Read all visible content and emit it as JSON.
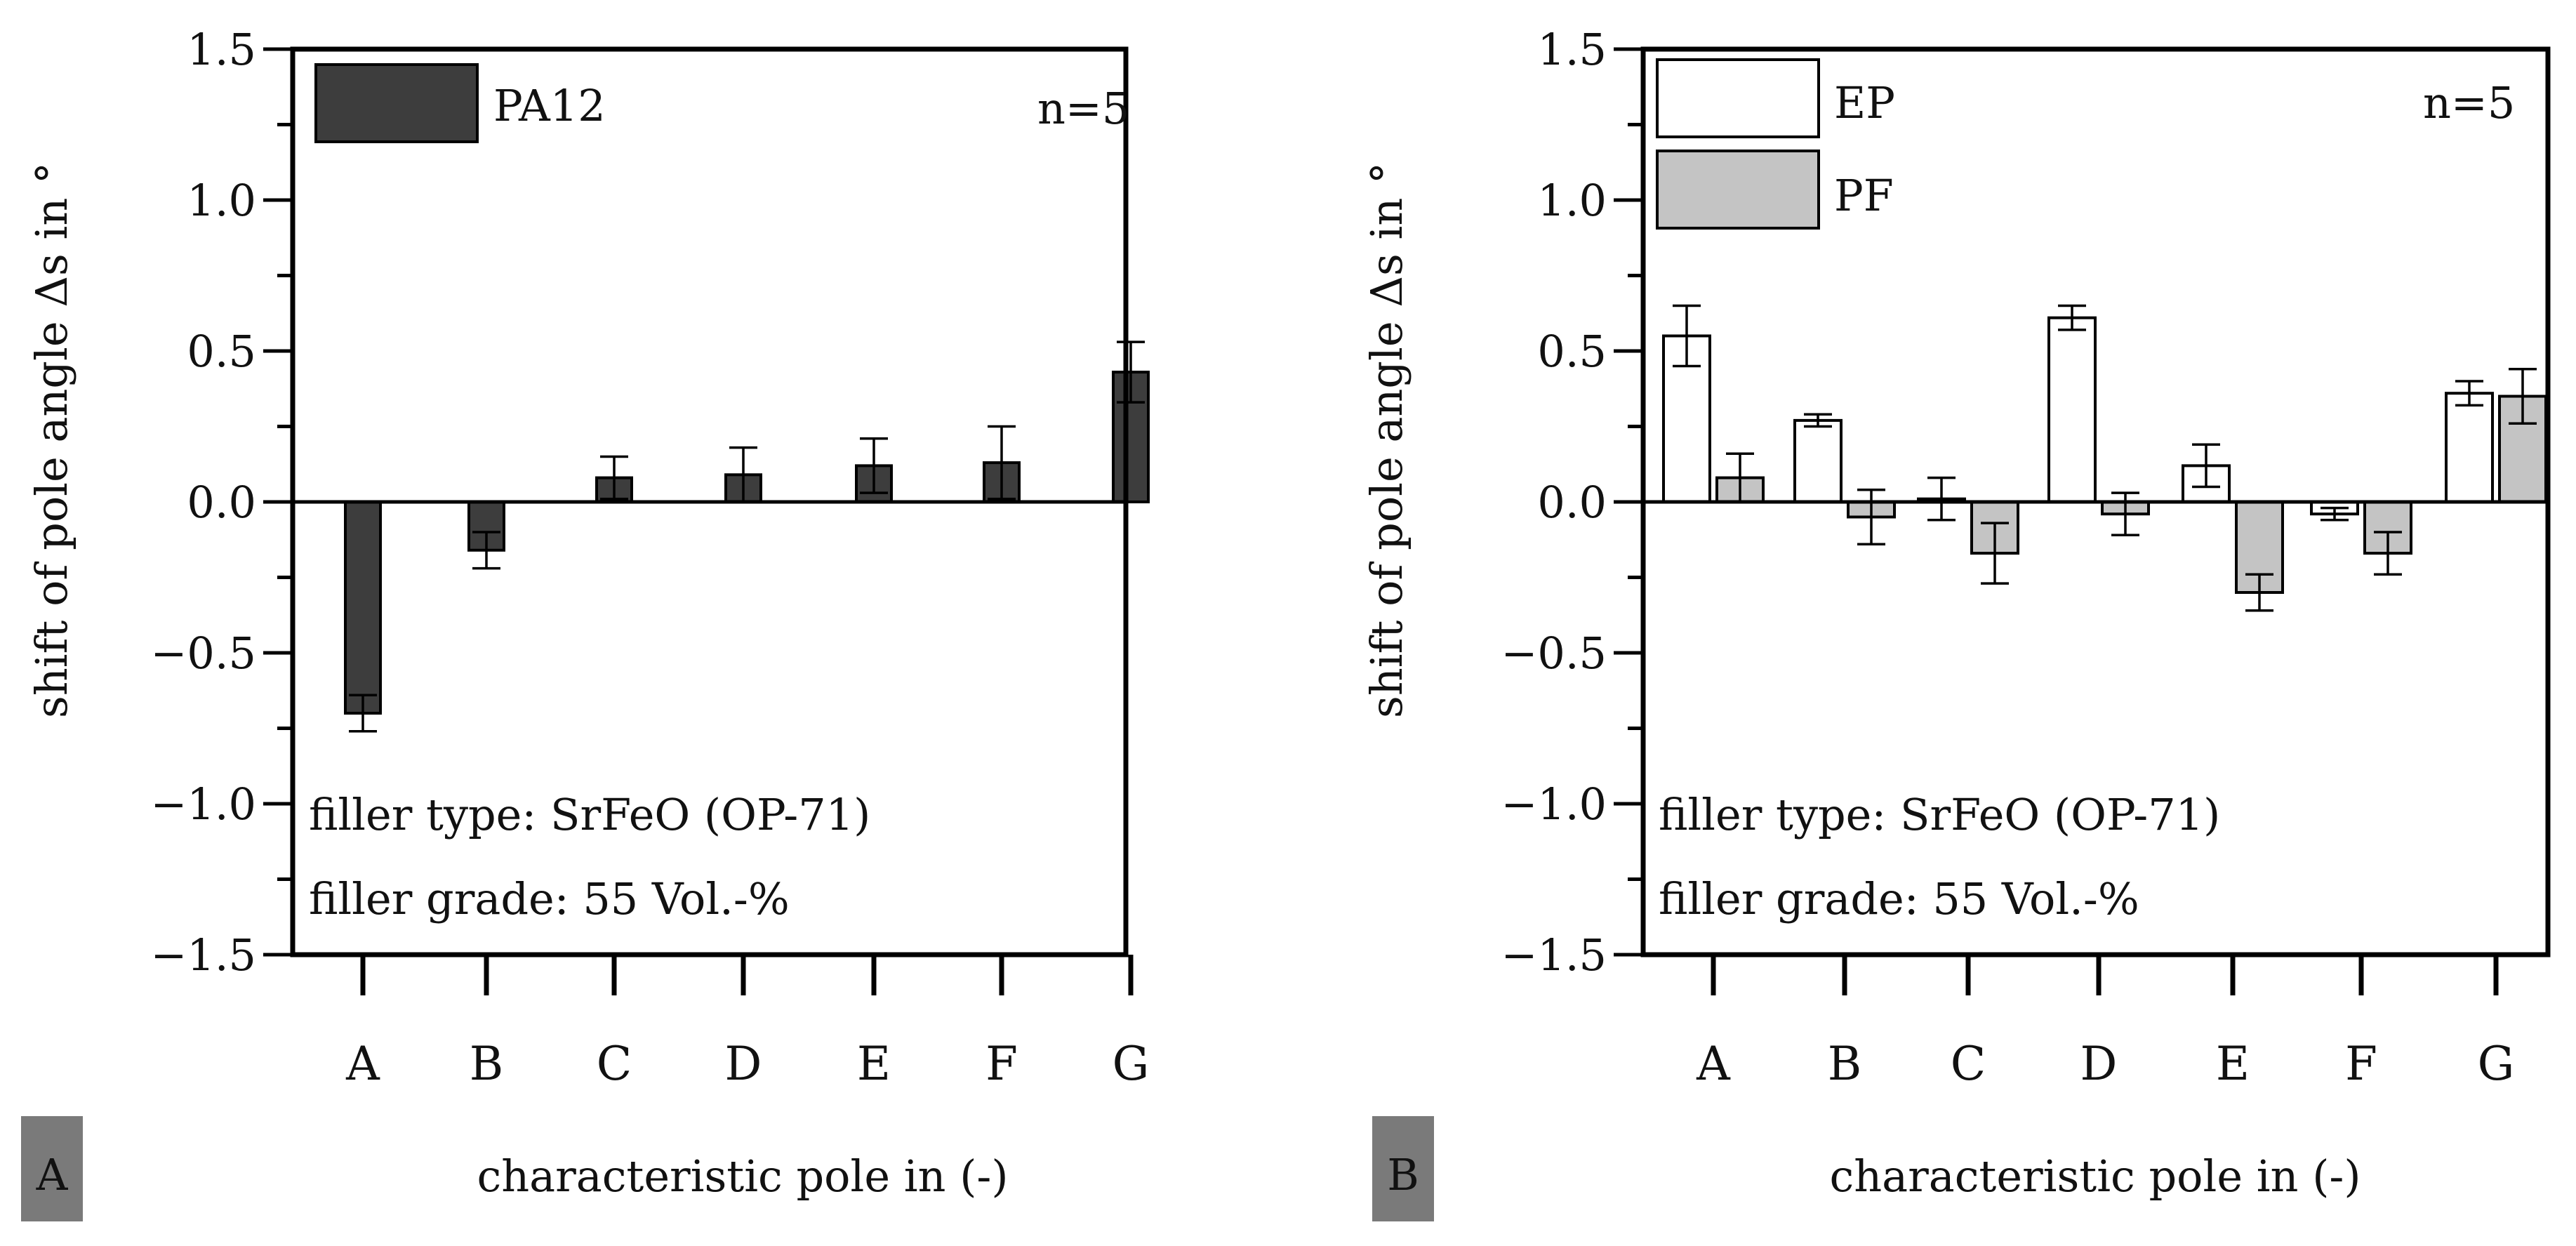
{
  "chart_data": [
    {
      "panel_label": "A",
      "type": "bar",
      "title": "",
      "xlabel": "characteristic pole in (-)",
      "ylabel": "shift of pole angle Δs in °",
      "ylim": [
        -1.5,
        1.5
      ],
      "yticks": [
        "1.5",
        "1.0",
        "0.5",
        "0.0",
        "-0.5",
        "-1.0",
        "-1.5"
      ],
      "categories": [
        "A",
        "B",
        "C",
        "D",
        "E",
        "F",
        "G"
      ],
      "annotation_n": "n=5",
      "filler_type": "filler type: SrFeO (OP-71)",
      "filler_grade": "filler grade: 55 Vol.-%",
      "legend_position": "top-left",
      "series": [
        {
          "name": "PA12",
          "color": "#3d3d3d",
          "values": [
            -0.7,
            -0.16,
            0.08,
            0.09,
            0.12,
            0.13,
            0.43
          ],
          "errors": [
            0.06,
            0.06,
            0.07,
            0.09,
            0.09,
            0.12,
            0.1
          ]
        }
      ]
    },
    {
      "panel_label": "B",
      "type": "bar",
      "title": "",
      "xlabel": "characteristic pole in (-)",
      "ylabel": "shift of pole angle Δs in °",
      "ylim": [
        -1.5,
        1.5
      ],
      "yticks": [
        "1.5",
        "1.0",
        "0.5",
        "0.0",
        "-0.5",
        "-1.0",
        "-1.5"
      ],
      "categories": [
        "A",
        "B",
        "C",
        "D",
        "E",
        "F",
        "G"
      ],
      "annotation_n": "n=5",
      "filler_type": "filler type: SrFeO (OP-71)",
      "filler_grade": "filler grade: 55 Vol.-%",
      "legend_position": "top-left",
      "series": [
        {
          "name": "EP",
          "color": "#ffffff",
          "values": [
            0.55,
            0.27,
            0.01,
            0.61,
            0.12,
            -0.04,
            0.36
          ],
          "errors": [
            0.1,
            0.02,
            0.07,
            0.04,
            0.07,
            0.02,
            0.04
          ]
        },
        {
          "name": "PF",
          "color": "#c4c4c4",
          "values": [
            0.08,
            -0.05,
            -0.17,
            -0.04,
            -0.3,
            -0.17,
            0.35
          ],
          "errors": [
            0.08,
            0.09,
            0.1,
            0.07,
            0.06,
            0.07,
            0.09
          ]
        }
      ]
    }
  ]
}
